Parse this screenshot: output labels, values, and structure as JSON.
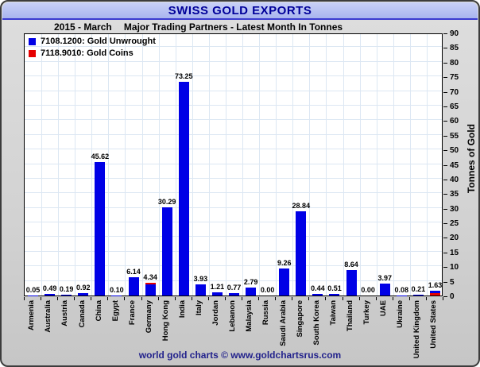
{
  "chart_data": {
    "type": "bar",
    "title": "SWISS GOLD EXPORTS",
    "period": "2015 - March",
    "subtitle": "Major Trading Partners - Latest Month In Tonnes",
    "ylabel": "Tonnes of Gold",
    "ylim": [
      0,
      90
    ],
    "ytick_step": 5,
    "grid": true,
    "legend_position": "top-left",
    "categories": [
      "Armenia",
      "Australia",
      "Austria",
      "Canada",
      "China",
      "Egypt",
      "France",
      "Germany",
      "Hong Kong",
      "India",
      "Italy",
      "Jordan",
      "Lebanon",
      "Malaysia",
      "Russia",
      "Saudi Arabia",
      "Singapore",
      "South Korea",
      "Taiwan",
      "Thailand",
      "Turkey",
      "UAE",
      "Ukraine",
      "United Kingdom",
      "United States"
    ],
    "series": [
      {
        "name": "7108.1200: Gold Unwrought",
        "color": "#0000e6",
        "values": [
          0.05,
          0.49,
          0.19,
          0.92,
          45.62,
          0.1,
          6.14,
          3.89,
          30.29,
          73.25,
          3.93,
          1.21,
          0.77,
          2.79,
          0.0,
          9.26,
          28.84,
          0.44,
          0.51,
          8.64,
          0.0,
          3.97,
          0.08,
          0.21,
          0.93
        ]
      },
      {
        "name": "7118.9010: Gold Coins",
        "color": "#e60000",
        "values": [
          0,
          0,
          0,
          0,
          0,
          0,
          0,
          0.45,
          0,
          0,
          0,
          0,
          0,
          0,
          0,
          0,
          0,
          0,
          0,
          0,
          0,
          0,
          0,
          0,
          0.7
        ],
        "segment_position": [
          "",
          "",
          "",
          "",
          "",
          "",
          "",
          "top",
          "",
          "",
          "",
          "",
          "",
          "",
          "",
          "",
          "",
          "",
          "",
          "",
          "",
          "",
          "",
          "",
          "bottom"
        ]
      }
    ],
    "bar_value_labels": [
      "0.05",
      "0.49",
      "0.19",
      "0.92",
      "45.62",
      "0.10",
      "6.14",
      "4.34",
      "30.29",
      "73.25",
      "3.93",
      "1.21",
      "0.77",
      "2.79",
      "0.00",
      "9.26",
      "28.84",
      "0.44",
      "0.51",
      "8.64",
      "0.00",
      "3.97",
      "0.08",
      "0.21",
      "1.63"
    ]
  },
  "footer": {
    "credit": "world gold charts © www.goldchartsrus.com"
  },
  "colors": {
    "title_text": "#000099",
    "titlebar_bg_top": "#c9d1f7",
    "titlebar_bg_bottom": "#a9b5ee",
    "titlebar_rule": "#3b3bd0",
    "plot_grid": "#dce7f3",
    "footer_text": "#22228c"
  }
}
